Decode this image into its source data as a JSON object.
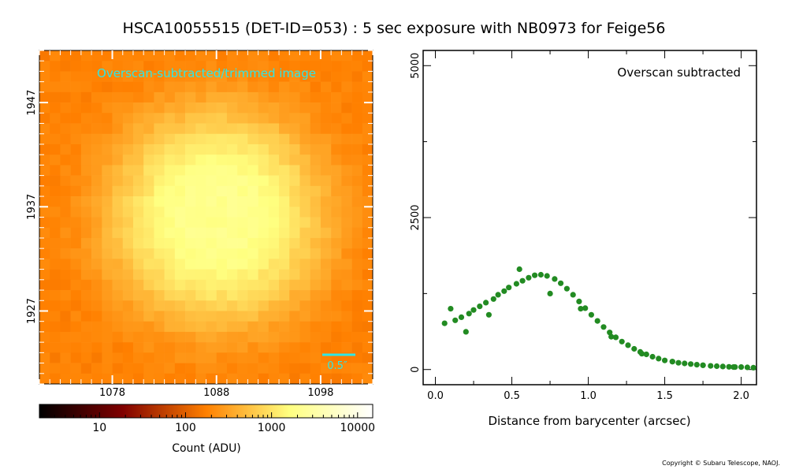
{
  "title": "HSCA10055515 (DET-ID=053) :  5 sec exposure with NB0973 for Feige56",
  "copyright": "Copyright © Subaru Telescope, NAOJ.",
  "colors": {
    "scatter": "#228b22",
    "image_label": "#2ee6e6",
    "scalebar": "#2ee6e6",
    "ticks_on_image": "#ffffff"
  },
  "chart_data": [
    {
      "type": "heatmap",
      "title": "",
      "image_label": "Overscan-subtracted/trimmed image",
      "scalebar_label": "0.5″",
      "colormap": "afmhot",
      "x_ticks": [
        "1078",
        "1088",
        "1098"
      ],
      "y_ticks": [
        "1947",
        "1937",
        "1927"
      ],
      "xlim": [
        1071,
        1103
      ],
      "ylim": [
        1920,
        1952
      ],
      "colorbar": {
        "label": "Count (ADU)",
        "ticks": [
          "10",
          "100",
          "1000",
          "10000"
        ],
        "scale": "log",
        "range": [
          2,
          15000
        ]
      }
    },
    {
      "type": "scatter",
      "title": "",
      "annotation": "Overscan subtracted",
      "xlabel": "Distance from barycenter (arcsec)",
      "ylabel": "",
      "xlim": [
        -0.08,
        2.1
      ],
      "ylim": [
        -250,
        5250
      ],
      "x_ticks": [
        "0.0",
        "0.5",
        "1.0",
        "1.5",
        "2.0"
      ],
      "y_ticks": [
        "0",
        "2500",
        "5000"
      ],
      "grid": false,
      "series": [
        {
          "color": "#228b22",
          "x": [
            0.06,
            0.13,
            0.17,
            0.22,
            0.25,
            0.29,
            0.33,
            0.38,
            0.41,
            0.45,
            0.48,
            0.53,
            0.57,
            0.61,
            0.65,
            0.69,
            0.73,
            0.78,
            0.82,
            0.86,
            0.9,
            0.94,
            0.98,
            1.02,
            1.06,
            1.1,
            1.14,
            1.18,
            1.22,
            1.26,
            1.3,
            1.34,
            1.38,
            1.42,
            1.46,
            1.5,
            1.55,
            1.59,
            1.63,
            1.67,
            1.71,
            1.75,
            1.8,
            1.84,
            1.88,
            1.92,
            1.96,
            2.0,
            2.04,
            2.08,
            0.1,
            0.2,
            0.35,
            0.55,
            0.75,
            0.95,
            1.15,
            1.35,
            1.55,
            1.75,
            1.95
          ],
          "y": [
            760,
            810,
            860,
            920,
            980,
            1040,
            1100,
            1160,
            1230,
            1290,
            1350,
            1410,
            1460,
            1510,
            1550,
            1560,
            1540,
            1490,
            1420,
            1330,
            1230,
            1120,
            1010,
            900,
            800,
            700,
            610,
            530,
            460,
            400,
            340,
            290,
            250,
            210,
            180,
            150,
            130,
            110,
            100,
            90,
            80,
            70,
            60,
            55,
            50,
            45,
            40,
            40,
            35,
            30,
            1000,
            620,
            900,
            1650,
            1250,
            1000,
            540,
            260,
            130,
            70,
            40
          ]
        }
      ]
    }
  ]
}
